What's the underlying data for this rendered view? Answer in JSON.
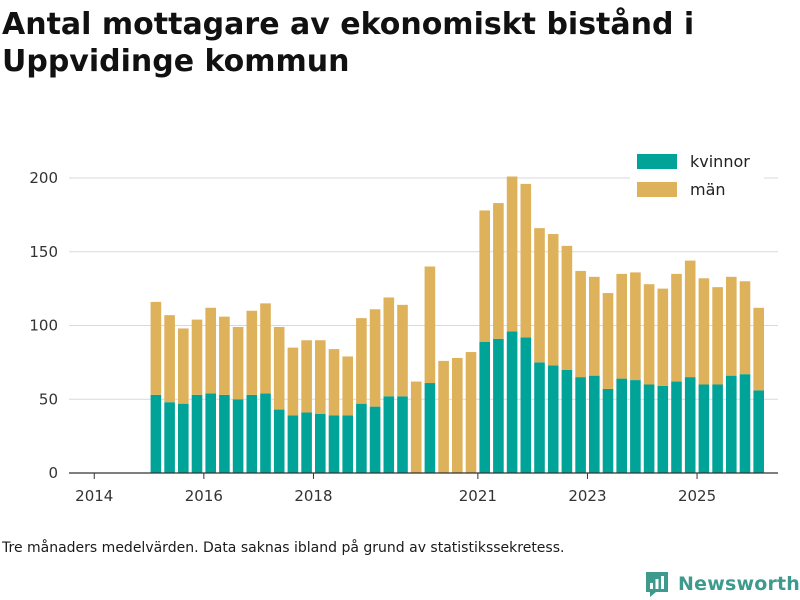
{
  "title": "Antal mottagare av ekonomiskt bistånd i Uppvidinge kommun",
  "footnote": "Tre månaders medelvärden. Data saknas ibland på grund av statistikssekretess.",
  "brand": {
    "name": "Newsworthy",
    "color": "#3d9a8c"
  },
  "colors": {
    "kvinnor": "#00a398",
    "man": "#deb15b",
    "grid": "#d9d9d9",
    "axis": "#333333"
  },
  "chart_data": {
    "type": "bar",
    "stacked": true,
    "title": "Antal mottagare av ekonomiskt bistånd i Uppvidinge kommun",
    "xlabel": "",
    "ylabel": "",
    "ylim": [
      0,
      200
    ],
    "yticks": [
      0,
      50,
      100,
      150,
      200
    ],
    "xticks": [
      {
        "label": "2014",
        "index": 0
      },
      {
        "label": "2016",
        "index": 8
      },
      {
        "label": "2018",
        "index": 16
      },
      {
        "label": "2021",
        "index": 28
      },
      {
        "label": "2023",
        "index": 36
      },
      {
        "label": "2025",
        "index": 44
      }
    ],
    "legend": [
      "kvinnor",
      "män"
    ],
    "legend_position": "top-right",
    "categories": [
      "2014-01",
      "2014-04",
      "2014-07",
      "2014-10",
      "2015-01",
      "2015-04",
      "2015-07",
      "2015-10",
      "2016-01",
      "2016-04",
      "2016-07",
      "2016-10",
      "2017-01",
      "2017-04",
      "2017-07",
      "2017-10",
      "2018-01",
      "2018-04",
      "2018-07",
      "2018-10",
      "2019-01",
      "2019-04",
      "2019-07",
      "2019-10",
      "2020-01",
      "2020-04",
      "2020-07",
      "2020-10",
      "2021-01",
      "2021-04",
      "2021-07",
      "2021-10",
      "2022-01",
      "2022-04",
      "2022-07",
      "2022-10",
      "2023-01",
      "2023-04",
      "2023-07",
      "2023-10",
      "2024-01",
      "2024-04",
      "2024-07",
      "2024-10",
      "2025-01",
      "2025-04",
      "2025-07",
      "2025-10",
      "2026-01",
      "2026-04"
    ],
    "series": [
      {
        "name": "kvinnor",
        "values": [
          null,
          null,
          null,
          53,
          48,
          47,
          53,
          54,
          53,
          50,
          53,
          54,
          43,
          39,
          41,
          40,
          39,
          39,
          47,
          45,
          52,
          52,
          null,
          61,
          null,
          null,
          null,
          89,
          91,
          96,
          92,
          75,
          73,
          70,
          65,
          66,
          57,
          64,
          63,
          60,
          59,
          62,
          65,
          60,
          60,
          66,
          67,
          56,
          null,
          null
        ]
      },
      {
        "name": "män",
        "values": [
          null,
          null,
          null,
          63,
          59,
          51,
          51,
          58,
          53,
          49,
          57,
          61,
          56,
          46,
          49,
          50,
          45,
          40,
          58,
          66,
          67,
          62,
          62,
          79,
          76,
          78,
          82,
          89,
          92,
          105,
          104,
          91,
          89,
          84,
          72,
          67,
          65,
          71,
          73,
          68,
          66,
          73,
          79,
          72,
          66,
          67,
          63,
          56,
          null,
          null
        ]
      }
    ]
  }
}
